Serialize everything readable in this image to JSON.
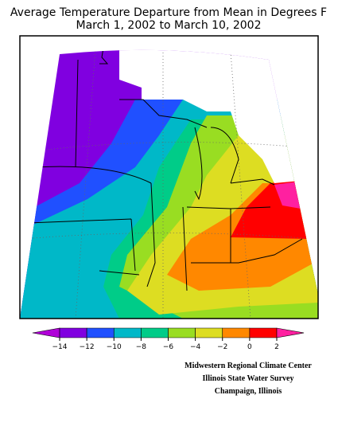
{
  "title": [
    "Average Temperature Departure from Mean in Degrees F",
    "March 1, 2002 to March 10, 2002"
  ],
  "legend": {
    "colors": [
      "#b000d8",
      "#8000e0",
      "#2050ff",
      "#00b8c8",
      "#00cc88",
      "#99dd22",
      "#dddd22",
      "#ff8800",
      "#ff0000",
      "#ff20a0"
    ],
    "ticks": [
      {
        "value": -14,
        "label": "−14"
      },
      {
        "value": -12,
        "label": "−12"
      },
      {
        "value": -10,
        "label": "−10"
      },
      {
        "value": -8,
        "label": "−8"
      },
      {
        "value": -6,
        "label": "−6"
      },
      {
        "value": -4,
        "label": "−4"
      },
      {
        "value": -2,
        "label": "−2"
      },
      0,
      2
    ]
  },
  "credits": [
    "Midwestern Regional Climate Center",
    "Illinois State Water Survey",
    "Champaign, Illinois"
  ]
}
